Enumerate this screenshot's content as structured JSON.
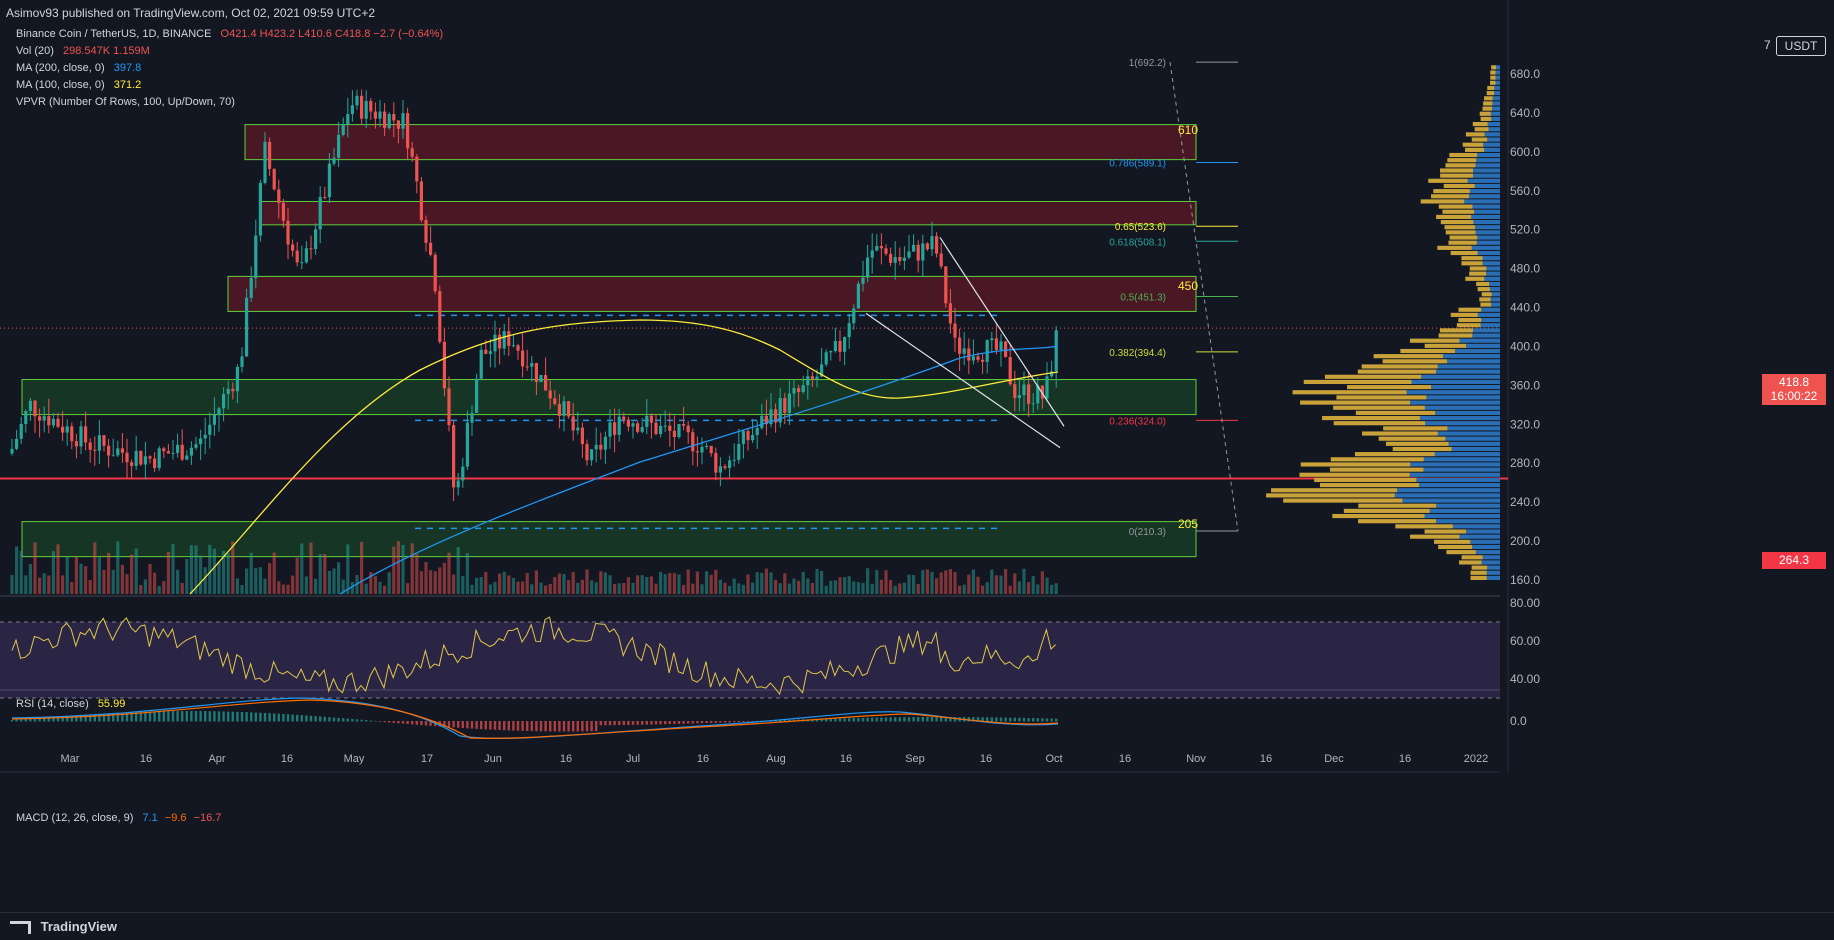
{
  "header": {
    "published": "Asimov93 published on TradingView.com, Oct 02, 2021 09:59 UTC+2"
  },
  "legend": {
    "symbol": "Binance Coin / TetherUS, 1D, BINANCE",
    "ohlc": "O421.4  H423.2  L410.6  C418.8  −2.7 (−0.64%)",
    "vol_label": "Vol (20)",
    "vol_values": "298.547K  1.159M",
    "ma200_label": "MA (200, close, 0)",
    "ma200_value": "397.8",
    "ma100_label": "MA (100, close, 0)",
    "ma100_value": "371.2",
    "vpvr_label": "VPVR (Number Of Rows, 100, Up/Down, 70)"
  },
  "rsi": {
    "label": "RSI (14, close)",
    "value": "55.99"
  },
  "macd": {
    "label": "MACD (12, 26, close, 9)",
    "v1": "7.1",
    "v2": "−9.6",
    "v3": "−16.7"
  },
  "price_axis": {
    "unit": "USDT",
    "zoom": "7",
    "ticks": [
      "680.0",
      "640.0",
      "600.0",
      "560.0",
      "520.0",
      "480.0",
      "440.0",
      "400.0",
      "360.0",
      "320.0",
      "280.0",
      "240.0",
      "200.0",
      "160.0"
    ],
    "current_price": "418.8",
    "countdown": "16:00:22",
    "support_level": "264.3"
  },
  "rsi_axis": {
    "ticks": [
      "80.00",
      "60.00",
      "40.00"
    ]
  },
  "macd_axis": {
    "ticks": [
      "0.0"
    ]
  },
  "time_axis": {
    "labels": [
      "Mar",
      "16",
      "Apr",
      "16",
      "May",
      "17",
      "Jun",
      "16",
      "Jul",
      "16",
      "Aug",
      "16",
      "Sep",
      "16",
      "Oct",
      "16",
      "Nov",
      "16",
      "Dec",
      "16",
      "2022"
    ]
  },
  "fib_levels": [
    {
      "label": "1(692.2)",
      "value": 692.2,
      "color": "#9598a1"
    },
    {
      "label": "0.786(589.1)",
      "value": 589.1,
      "color": "#2196f3"
    },
    {
      "label": "0.65(523.6)",
      "value": 523.6,
      "color": "#ffeb3b"
    },
    {
      "label": "0.618(508.1)",
      "value": 508.1,
      "color": "#26a69a"
    },
    {
      "label": "0.5(451.3)",
      "value": 451.3,
      "color": "#4caf50"
    },
    {
      "label": "0.382(394.4)",
      "value": 394.4,
      "color": "#cddc39"
    },
    {
      "label": "0.236(324.0)",
      "value": 324.0,
      "color": "#f23645"
    },
    {
      "label": "0(210.3)",
      "value": 210.3,
      "color": "#9598a1"
    }
  ],
  "annotations": [
    {
      "text": "610",
      "value": 610
    },
    {
      "text": "450",
      "value": 450
    },
    {
      "text": "205",
      "value": 205
    }
  ],
  "zones": [
    {
      "type": "resistance",
      "top": 628,
      "bottom": 592
    },
    {
      "type": "resistance",
      "top": 549,
      "bottom": 525
    },
    {
      "type": "resistance",
      "top": 472,
      "bottom": 436
    },
    {
      "type": "support",
      "top": 366,
      "bottom": 330
    },
    {
      "type": "support",
      "top": 220,
      "bottom": 184
    }
  ],
  "colors": {
    "up": "#26a69a",
    "down": "#ef5350",
    "ma200": "#2196f3",
    "ma100": "#ffeb3b",
    "rsi": "#e0c84a",
    "macd": "#2196f3",
    "signal": "#ff6d00",
    "vp_up": "#2a6fb5",
    "vp_down": "#c9a23a"
  },
  "footer": {
    "brand": "TradingView"
  }
}
